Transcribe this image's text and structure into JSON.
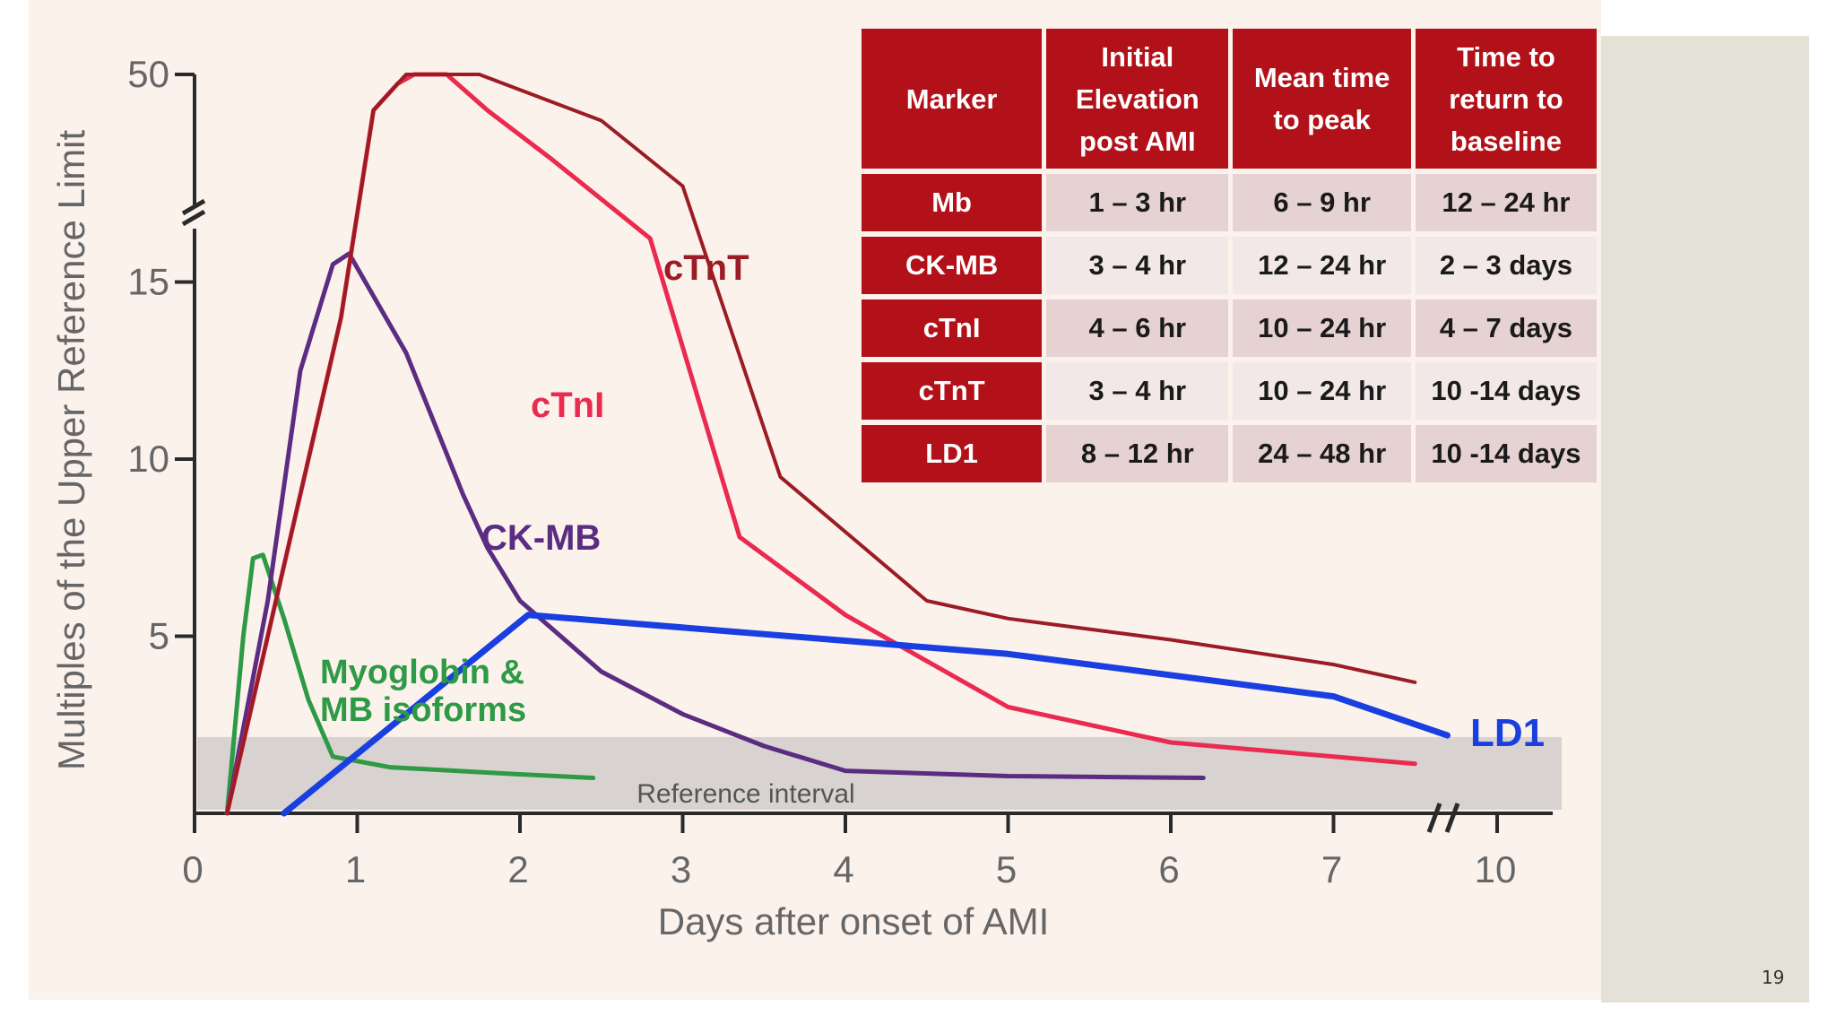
{
  "page_number": "19",
  "table": {
    "headers": [
      "Marker",
      "Initial Elevation post AMI",
      "Mean time to peak",
      "Time to return to baseline"
    ],
    "rows": [
      {
        "marker": "Mb",
        "initial": "1 – 3 hr",
        "peak": "6 – 9 hr",
        "baseline": "12 – 24 hr"
      },
      {
        "marker": "CK-MB",
        "initial": "3 – 4 hr",
        "peak": "12 – 24 hr",
        "baseline": "2 – 3 days"
      },
      {
        "marker": "cTnI",
        "initial": "4 – 6 hr",
        "peak": "10 – 24 hr",
        "baseline": "4 – 7 days"
      },
      {
        "marker": "cTnT",
        "initial": "3 – 4 hr",
        "peak": "10 – 24 hr",
        "baseline": "10 -14 days"
      },
      {
        "marker": "LD1",
        "initial": "8 – 12 hr",
        "peak": "24 – 48 hr",
        "baseline": "10 -14 days"
      }
    ]
  },
  "chart_data": {
    "type": "line",
    "xlabel": "Days after onset of AMI",
    "ylabel": "Multiples of the Upper Reference Limit",
    "x_ticks": [
      0,
      1,
      2,
      3,
      4,
      5,
      6,
      7,
      10
    ],
    "x_tick_labels": [
      "0",
      "1",
      "2",
      "3",
      "4",
      "5",
      "6",
      "7",
      "10"
    ],
    "x_break_between": [
      7,
      10
    ],
    "y_ticks": [
      5,
      10,
      15,
      50
    ],
    "y_tick_labels": [
      "5",
      "10",
      "15",
      "50"
    ],
    "y_break_between": [
      15,
      50
    ],
    "reference_interval": {
      "label": "Reference interval",
      "y_range": [
        0,
        1.9
      ]
    },
    "colors": {
      "cTnT": "#9b1c24",
      "cTnI": "#ea2a4e",
      "CK-MB": "#5b2d82",
      "Myoglobin": "#2e9a45",
      "LD1": "#1a3fe0"
    },
    "series": [
      {
        "name": "Myoglobin",
        "label": "Myoglobin & MB isoforms",
        "color": "#2e9a45",
        "points": [
          [
            0.2,
            0
          ],
          [
            0.3,
            5
          ],
          [
            0.36,
            7.2
          ],
          [
            0.42,
            7.3
          ],
          [
            0.55,
            5.5
          ],
          [
            0.7,
            3.2
          ],
          [
            0.85,
            1.6
          ],
          [
            1.2,
            1.3
          ],
          [
            2.0,
            1.1
          ],
          [
            2.45,
            1.0
          ]
        ]
      },
      {
        "name": "CK-MB",
        "label": "CK-MB",
        "color": "#5b2d82",
        "points": [
          [
            0.2,
            0
          ],
          [
            0.45,
            6
          ],
          [
            0.65,
            12.5
          ],
          [
            0.85,
            15.5
          ],
          [
            0.95,
            15.8
          ],
          [
            1.3,
            13
          ],
          [
            1.65,
            9
          ],
          [
            1.8,
            7.5
          ],
          [
            2.0,
            6.0
          ],
          [
            2.5,
            4.0
          ],
          [
            3.0,
            2.8
          ],
          [
            3.5,
            1.9
          ],
          [
            4.0,
            1.2
          ],
          [
            5.0,
            1.05
          ],
          [
            6.2,
            1.0
          ]
        ]
      },
      {
        "name": "cTnI",
        "label": "cTnI",
        "color": "#ea2a4e",
        "points": [
          [
            0.2,
            0
          ],
          [
            0.6,
            8
          ],
          [
            0.9,
            14
          ],
          [
            1.1,
            42
          ],
          [
            1.25,
            48
          ],
          [
            1.35,
            50
          ],
          [
            1.55,
            50
          ],
          [
            1.8,
            42
          ],
          [
            2.2,
            30
          ],
          [
            2.8,
            18
          ],
          [
            3.35,
            7.8
          ],
          [
            4.0,
            5.6
          ],
          [
            5.0,
            3.0
          ],
          [
            6.0,
            2.0
          ],
          [
            7.0,
            1.6
          ],
          [
            7.5,
            1.4
          ]
        ]
      },
      {
        "name": "cTnT",
        "label": "cTnT",
        "color": "#9b1c24",
        "points": [
          [
            0.2,
            0
          ],
          [
            0.6,
            8
          ],
          [
            0.9,
            14
          ],
          [
            1.1,
            42
          ],
          [
            1.3,
            50
          ],
          [
            1.55,
            50
          ],
          [
            1.75,
            50
          ],
          [
            2.5,
            36
          ],
          [
            3.0,
            26
          ],
          [
            3.6,
            9.5
          ],
          [
            4.5,
            6.0
          ],
          [
            5.0,
            5.5
          ],
          [
            6.0,
            4.9
          ],
          [
            7.0,
            4.2
          ],
          [
            7.5,
            3.7
          ]
        ]
      },
      {
        "name": "LD1",
        "label": "LD1",
        "color": "#1a3fe0",
        "points": [
          [
            0.55,
            0
          ],
          [
            2.05,
            5.6
          ],
          [
            5.0,
            4.5
          ],
          [
            7.0,
            3.3
          ],
          [
            7.7,
            2.2
          ]
        ]
      }
    ]
  }
}
